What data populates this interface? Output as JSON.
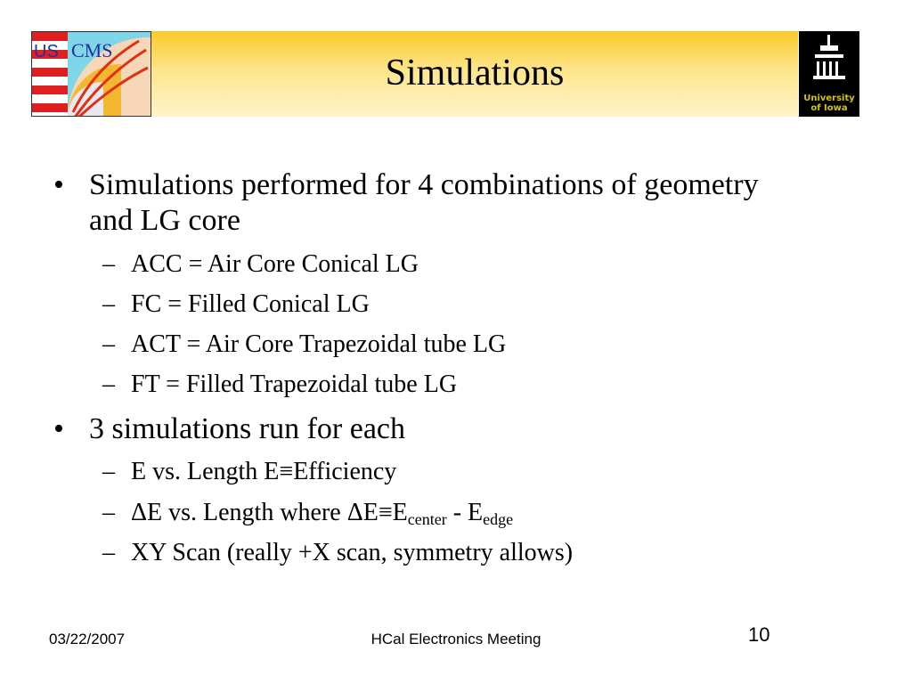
{
  "slide": {
    "title": "Simulations",
    "logos": {
      "left": "US CMS",
      "right": "University of Iowa"
    },
    "bullets": [
      {
        "text": "Simulations performed for 4 combinations of geometry and LG core",
        "sub": [
          "ACC = Air Core Conical LG",
          "FC = Filled Conical LG",
          "ACT = Air Core Trapezoidal tube LG",
          "FT = Filled Trapezoidal tube LG"
        ]
      },
      {
        "text": "3 simulations run for each",
        "sub": [
          "E vs. Length E≡Efficiency"
        ],
        "sub2": {
          "pre": "ΔE vs. Length where ΔE≡E",
          "s1": "center",
          "mid": " - E",
          "s2": "edge"
        },
        "sub3": "XY Scan (really +X scan, symmetry allows)"
      }
    ],
    "bullet_glyph": "•",
    "dash_glyph": "–"
  },
  "footer": {
    "date": "03/22/2007",
    "center": "HCal Electronics Meeting",
    "page": "10"
  }
}
